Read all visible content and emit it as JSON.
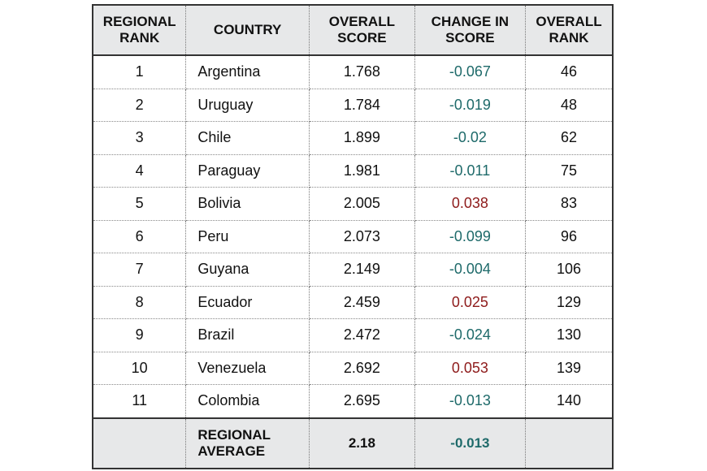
{
  "headers": {
    "regional_rank": "REGIONAL RANK",
    "country": "COUNTRY",
    "overall_score": "OVERALL SCORE",
    "change": "CHANGE IN SCORE",
    "overall_rank": "OVERALL RANK"
  },
  "rows": [
    {
      "rank": "1",
      "country": "Argentina",
      "score": "1.768",
      "change": "-0.067",
      "overall": "46"
    },
    {
      "rank": "2",
      "country": "Uruguay",
      "score": "1.784",
      "change": "-0.019",
      "overall": "48"
    },
    {
      "rank": "3",
      "country": "Chile",
      "score": "1.899",
      "change": "-0.02",
      "overall": "62"
    },
    {
      "rank": "4",
      "country": "Paraguay",
      "score": "1.981",
      "change": "-0.011",
      "overall": "75"
    },
    {
      "rank": "5",
      "country": "Bolivia",
      "score": "2.005",
      "change": "0.038",
      "overall": "83"
    },
    {
      "rank": "6",
      "country": "Peru",
      "score": "2.073",
      "change": "-0.099",
      "overall": "96"
    },
    {
      "rank": "7",
      "country": "Guyana",
      "score": "2.149",
      "change": "-0.004",
      "overall": "106"
    },
    {
      "rank": "8",
      "country": "Ecuador",
      "score": "2.459",
      "change": "0.025",
      "overall": "129"
    },
    {
      "rank": "9",
      "country": "Brazil",
      "score": "2.472",
      "change": "-0.024",
      "overall": "130"
    },
    {
      "rank": "10",
      "country": "Venezuela",
      "score": "2.692",
      "change": "0.053",
      "overall": "139"
    },
    {
      "rank": "11",
      "country": "Colombia",
      "score": "2.695",
      "change": "-0.013",
      "overall": "140"
    }
  ],
  "footer": {
    "label": "REGIONAL AVERAGE",
    "score": "2.18",
    "change": "-0.013"
  },
  "colors": {
    "negative_change": "#1e6a6a",
    "positive_change": "#8e1b1b",
    "header_bg": "#e7e8e9"
  }
}
